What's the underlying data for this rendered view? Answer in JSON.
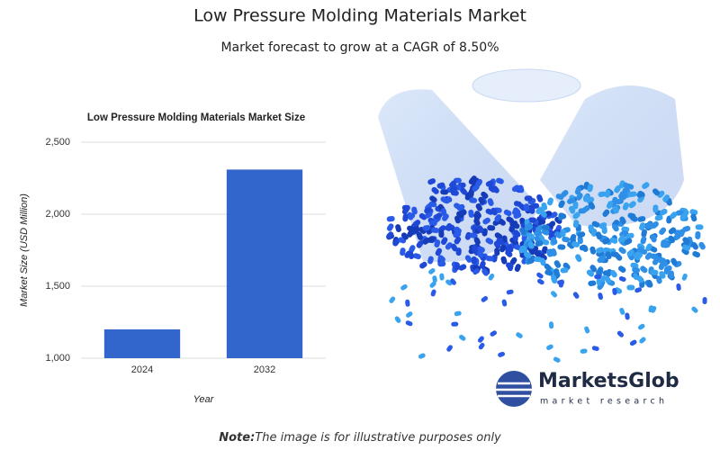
{
  "header": {
    "title": "Low Pressure Molding Materials Market",
    "subtitle": "Market forecast to grow at a CAGR of 8.50%"
  },
  "chart_data": {
    "type": "bar",
    "title": "Low Pressure Molding Materials Market Size",
    "x_label": "Year",
    "y_label": "Market Size (USD Million)",
    "categories": [
      "2024",
      "2032"
    ],
    "values": [
      1200,
      2310
    ],
    "color": "#3366cc",
    "ylim": [
      1000,
      2500
    ],
    "yticks": [
      {
        "value": 1000,
        "label": "1,000"
      },
      {
        "value": 1500,
        "label": "1,500"
      },
      {
        "value": 2000,
        "label": "2,000"
      },
      {
        "value": 2500,
        "label": "2,500"
      }
    ],
    "grid": true
  },
  "logo": {
    "name": "MarketsGlob",
    "tagline": "market research"
  },
  "note": {
    "label": "Note:",
    "text": "The image is for illustrative purposes only"
  }
}
